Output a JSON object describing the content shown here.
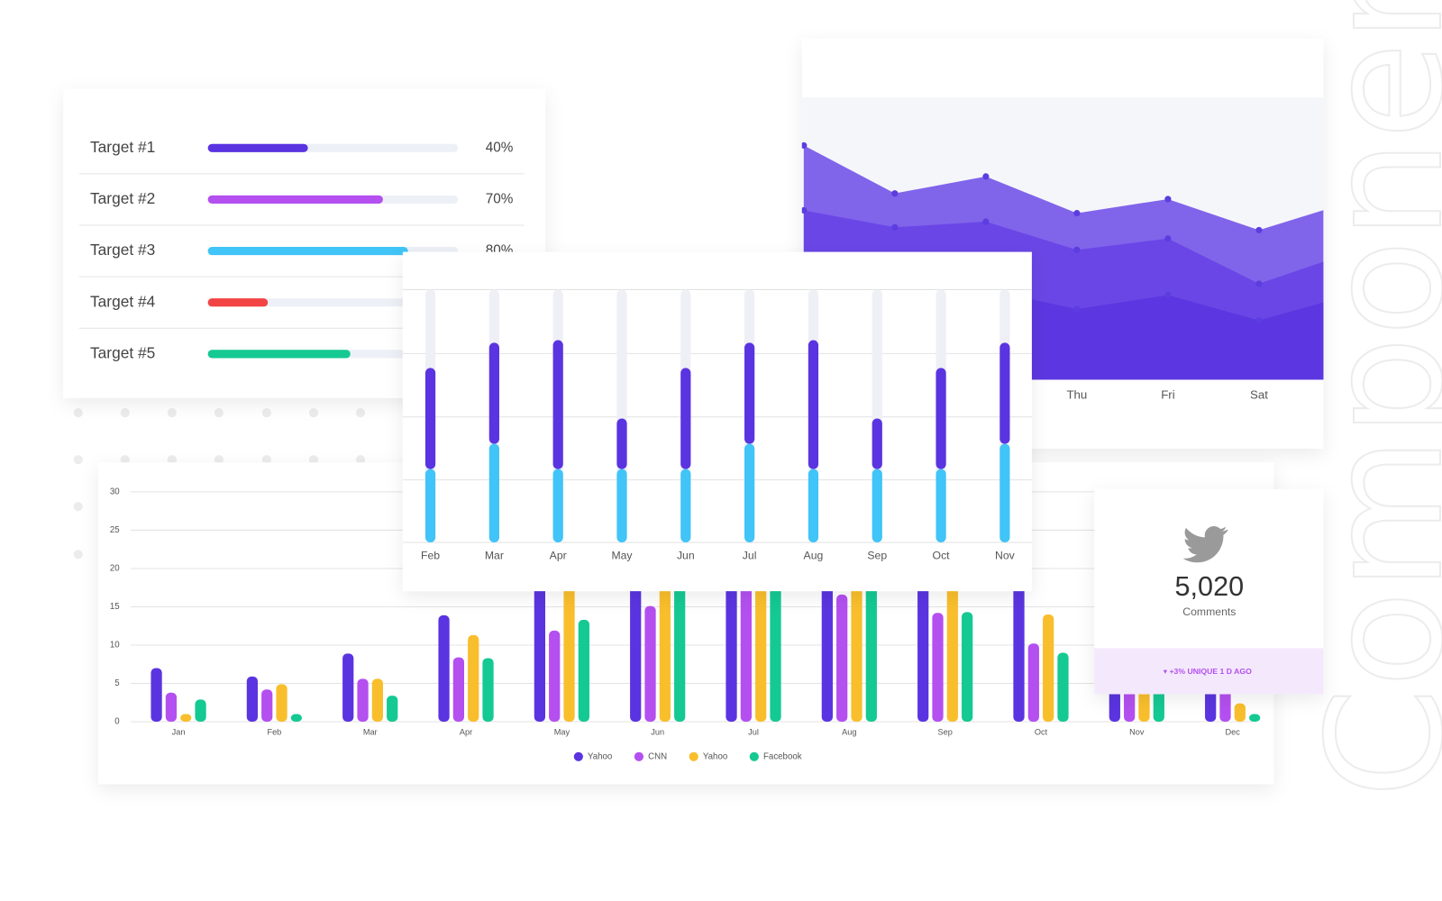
{
  "targets": {
    "rows": [
      {
        "label": "Target #1",
        "value": 40,
        "value_label": "40%",
        "color": "#5a34e0"
      },
      {
        "label": "Target #2",
        "value": 70,
        "value_label": "70%",
        "color": "#b44ff0"
      },
      {
        "label": "Target #3",
        "value": 80,
        "value_label": "80%",
        "color": "#41c4f7"
      },
      {
        "label": "Target #4",
        "value": 24,
        "color": "#f24444"
      },
      {
        "label": "Target #5",
        "value": 57,
        "color": "#14c992"
      }
    ],
    "track_color": "#eef0f7"
  },
  "chart_data": [
    {
      "type": "area",
      "categories": [
        null,
        null,
        null,
        "Thu",
        "Fri",
        "Sat",
        null
      ],
      "ylim": [
        0,
        100
      ],
      "series": [
        {
          "color": "#8064ea",
          "values": [
            83,
            66,
            72,
            59,
            64,
            53,
            63
          ]
        },
        {
          "color": "#6a46e6",
          "values": [
            60,
            54,
            56,
            46,
            50,
            34,
            45
          ]
        },
        {
          "color": "#5c36e0",
          "values": [
            28,
            26,
            32,
            25,
            30,
            21,
            30
          ]
        }
      ]
    },
    {
      "type": "bar",
      "stacked": true,
      "categories": [
        "Feb",
        "Mar",
        "Apr",
        "May",
        "Jun",
        "Jul",
        "Aug",
        "Sep",
        "Oct",
        "Nov"
      ],
      "ylim": [
        0,
        100
      ],
      "track_color": "#eef0f6",
      "series": [
        {
          "color": "#41c4f7",
          "values": [
            29,
            39,
            29,
            29,
            29,
            39,
            29,
            29,
            29,
            39
          ]
        },
        {
          "color": "#5a34e0",
          "values": [
            40,
            40,
            51,
            20,
            40,
            40,
            51,
            20,
            40,
            40
          ]
        }
      ]
    },
    {
      "type": "bar",
      "categories": [
        "Jan",
        "Feb",
        "Mar",
        "Apr",
        "May",
        "Jun",
        "Jul",
        "Aug",
        "Sep",
        "Oct",
        "Nov",
        "Dec"
      ],
      "ylim": [
        0,
        30
      ],
      "yticks": [
        0,
        5,
        10,
        15,
        20,
        25,
        30
      ],
      "grid": true,
      "legend": "bottom",
      "series": [
        {
          "name": "Yahoo",
          "color": "#5a34e0",
          "values": [
            7,
            5.9,
            8.9,
            13.9,
            20,
            24,
            26,
            22,
            20,
            18,
            10,
            6
          ]
        },
        {
          "name": "CNN",
          "color": "#b44ff0",
          "values": [
            3.8,
            4.2,
            5.6,
            8.4,
            11.9,
            15.1,
            20,
            16.6,
            14.2,
            10.2,
            8,
            5
          ]
        },
        {
          "name": "Yahoo",
          "color": "#f9be2c",
          "values": [
            1,
            4.9,
            5.6,
            11.3,
            18,
            22,
            24,
            20,
            18,
            14,
            7,
            2.4
          ]
        },
        {
          "name": "Facebook",
          "color": "#14c992",
          "values": [
            2.9,
            1,
            3.4,
            8.3,
            13.3,
            19,
            22,
            18,
            14.3,
            9,
            6,
            1
          ]
        }
      ]
    }
  ],
  "stat_card": {
    "value": "5,020",
    "label": "Comments",
    "footer": "▾ +3% UNIQUE 1 D AGO"
  },
  "watermark": "Components"
}
